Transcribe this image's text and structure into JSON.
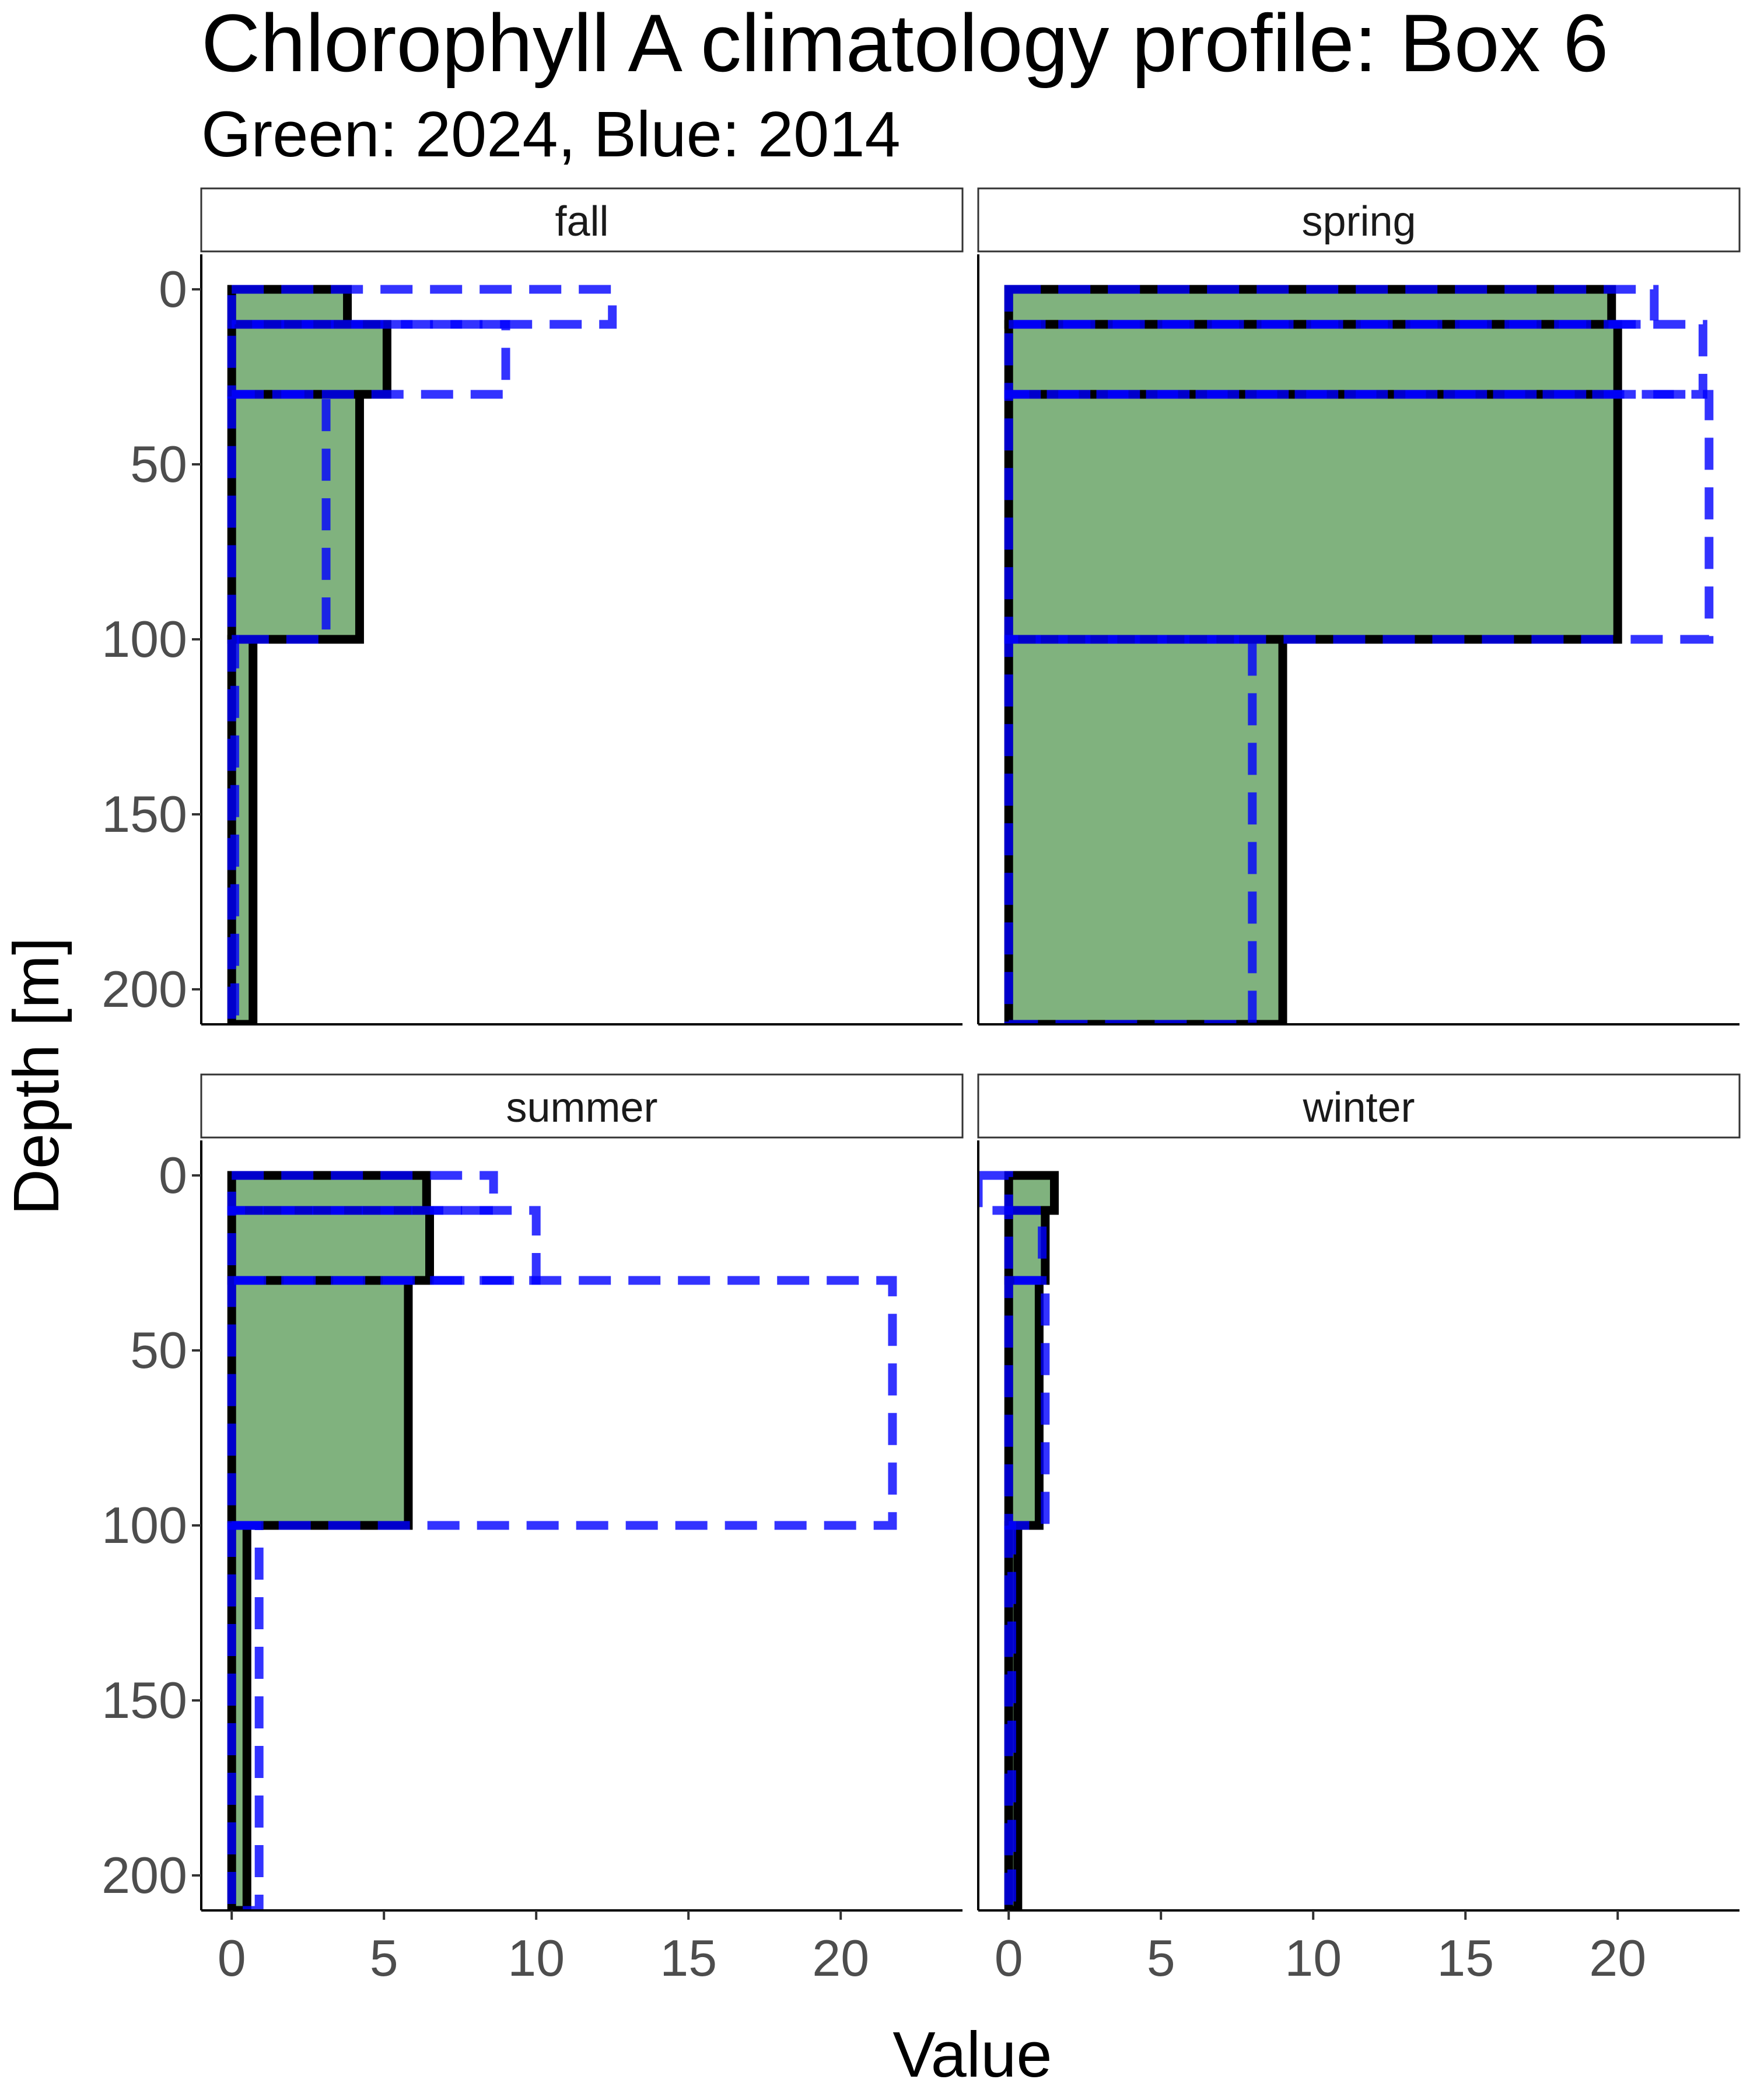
{
  "chart_data": {
    "type": "bar",
    "title": "Chlorophyll A climatology profile: Box 6",
    "subtitle": "Green: 2024, Blue: 2014",
    "xlabel": "Value",
    "ylabel": "Depth [m]",
    "xlim": [
      -1,
      24
    ],
    "ylim": [
      210,
      -10
    ],
    "xticks": [
      0,
      5,
      10,
      15,
      20
    ],
    "yticks": [
      0,
      50,
      100,
      150,
      200
    ],
    "grid": false,
    "colors": {
      "fill_2024": "#80b27e",
      "outline_2024": "#000000",
      "line_2014": "#0000ff",
      "overlap_line": "#00307a"
    },
    "depth_layers": [
      {
        "top": 0,
        "bottom": 10
      },
      {
        "top": 10,
        "bottom": 30
      },
      {
        "top": 30,
        "bottom": 100
      },
      {
        "top": 100,
        "bottom": 210
      }
    ],
    "panels": [
      {
        "facet": "fall",
        "values_2024": [
          3.8,
          5.1,
          4.2,
          0.7
        ],
        "values_2014": [
          12.5,
          9.0,
          3.1,
          0.1
        ]
      },
      {
        "facet": "spring",
        "values_2024": [
          19.8,
          20.0,
          20.0,
          9.0
        ],
        "values_2014": [
          21.2,
          22.8,
          23.0,
          8.0
        ]
      },
      {
        "facet": "summer",
        "values_2024": [
          6.4,
          6.5,
          5.8,
          0.5
        ],
        "values_2014": [
          8.6,
          10.0,
          21.7,
          0.9
        ]
      },
      {
        "facet": "winter",
        "values_2024": [
          1.5,
          1.2,
          1.0,
          0.3
        ],
        "values_2014": [
          -1.0,
          1.1,
          1.2,
          0.1
        ]
      }
    ]
  }
}
